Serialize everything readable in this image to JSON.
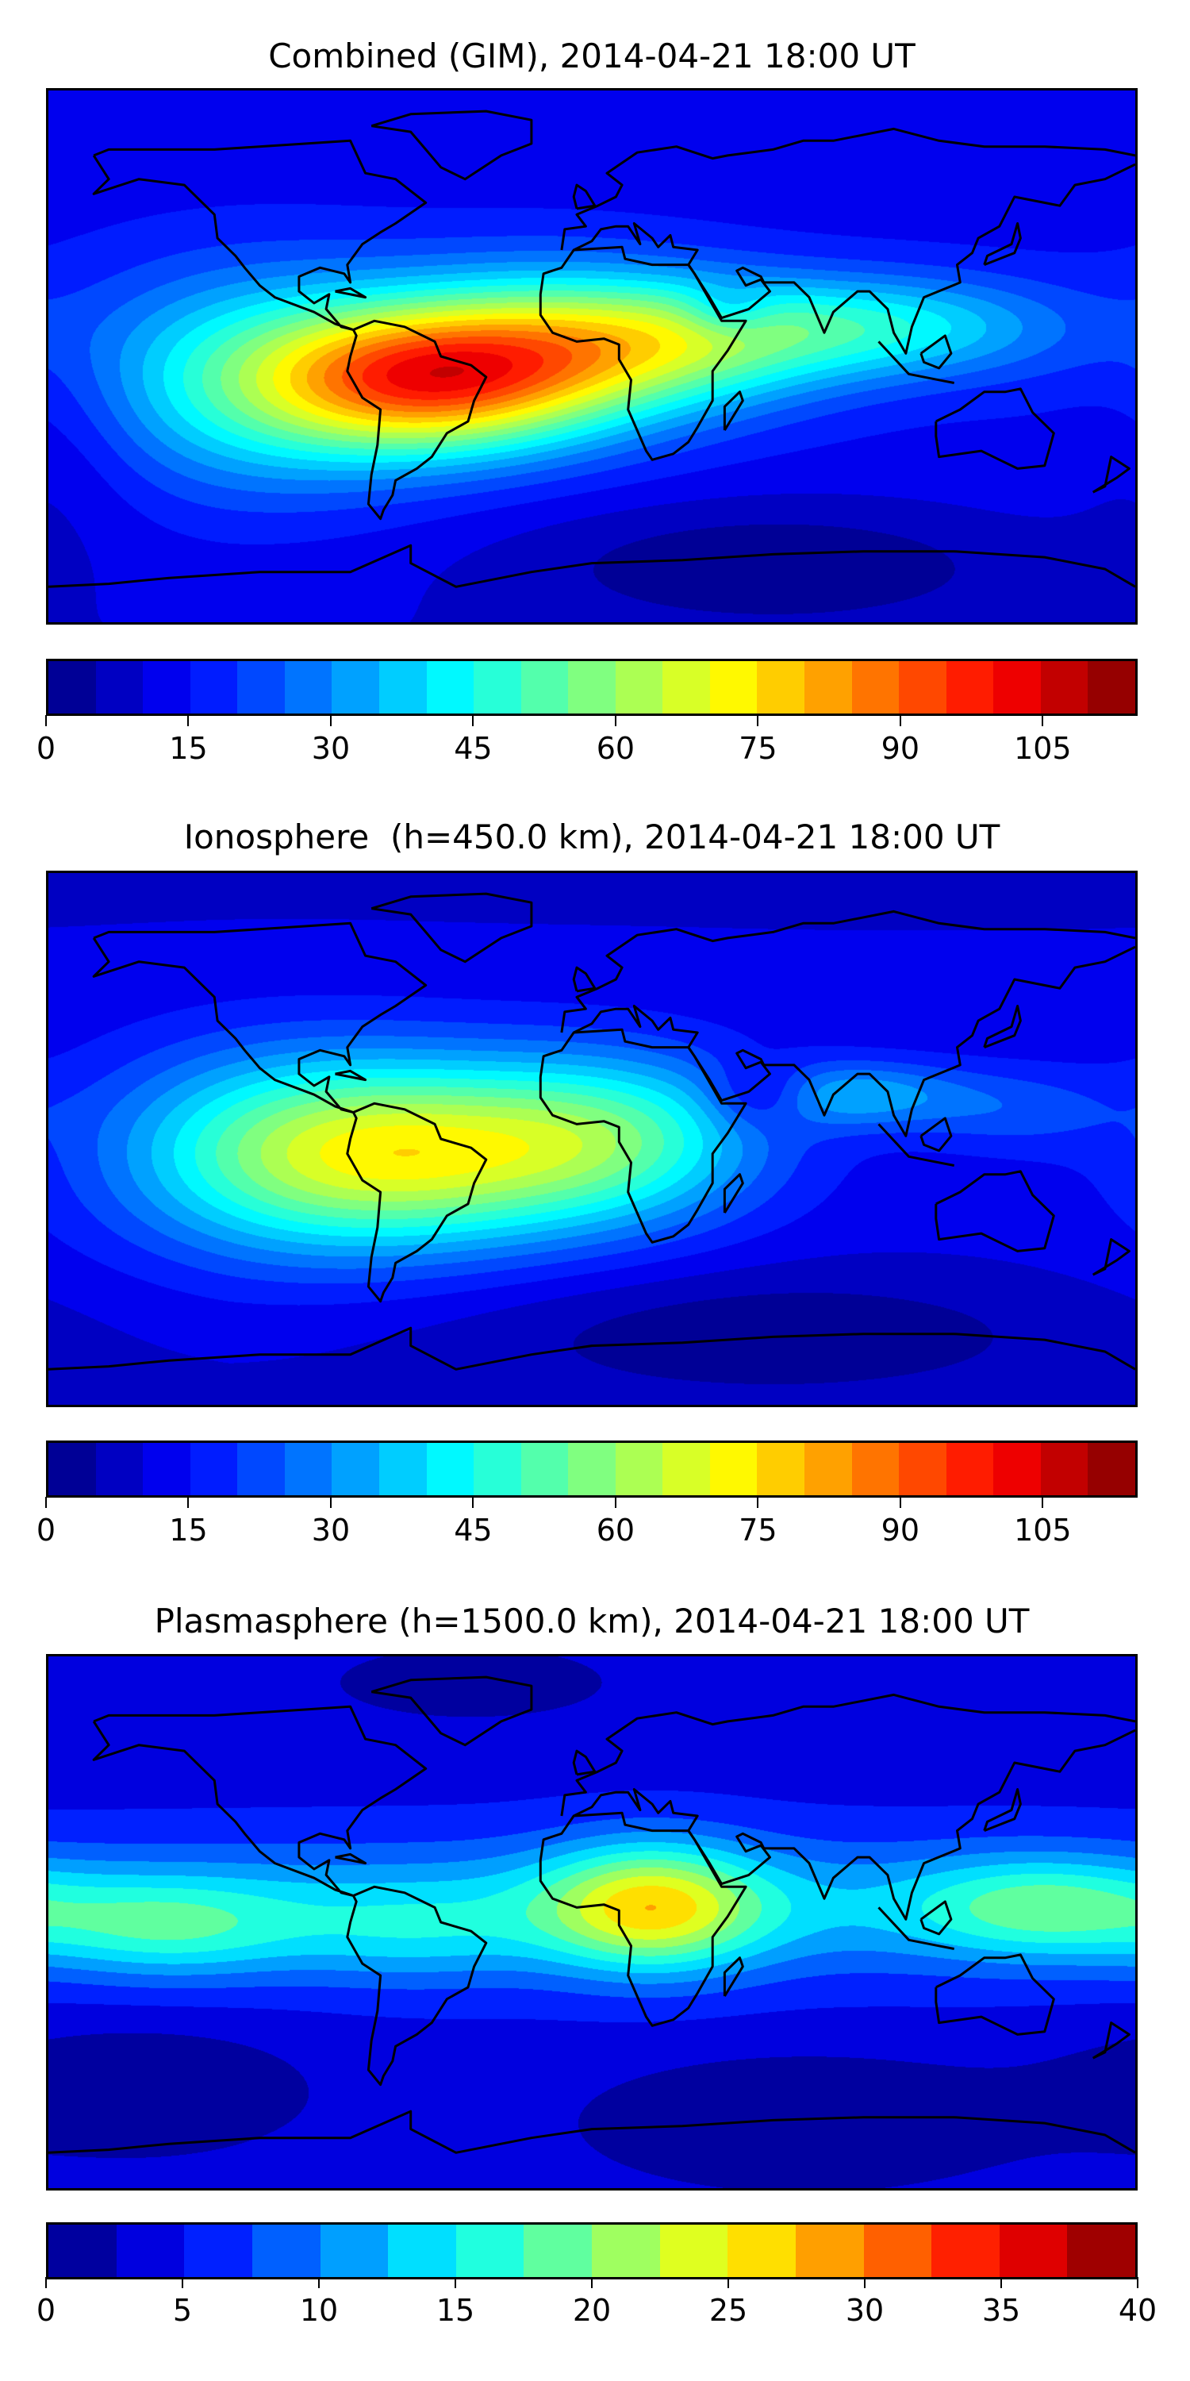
{
  "chart_data": [
    {
      "type": "heatmap",
      "title": "Combined (GIM), 2014-04-21 18:00 UT",
      "extent": {
        "lon": [
          -180,
          180
        ],
        "lat": [
          -90,
          90
        ]
      },
      "levels": {
        "min": 0,
        "max": 115,
        "step": 5
      },
      "ticks": [
        "0",
        "15",
        "30",
        "45",
        "60",
        "75",
        "90",
        "105"
      ],
      "tick_values": [
        0,
        15,
        30,
        45,
        60,
        75,
        90,
        105
      ],
      "base": 14,
      "blobs": [
        {
          "lon": -55,
          "lat": -8,
          "amp": 58,
          "sx": 38,
          "sy": 17
        },
        {
          "lon": -15,
          "lat": 2,
          "amp": 32,
          "sx": 40,
          "sy": 20
        },
        {
          "lon": -110,
          "lat": -8,
          "amp": 30,
          "sx": 42,
          "sy": 26
        },
        {
          "lon": 30,
          "lat": 5,
          "amp": 32,
          "sx": 40,
          "sy": 15
        },
        {
          "lon": 100,
          "lat": 10,
          "amp": 26,
          "sx": 40,
          "sy": 12
        },
        {
          "lon": 45,
          "lat": 15,
          "amp": -12,
          "sx": 10,
          "sy": 6
        },
        {
          "lon": 60,
          "lat": -70,
          "amp": -11,
          "sx": 60,
          "sy": 15
        },
        {
          "lon": -175,
          "lat": -30,
          "amp": -6,
          "sx": 20,
          "sy": 25
        }
      ]
    },
    {
      "type": "heatmap",
      "title": "Ionosphere  (h=450.0 km), 2014-04-21 18:00 UT",
      "extent": {
        "lon": [
          -180,
          180
        ],
        "lat": [
          -90,
          90
        ]
      },
      "levels": {
        "min": 0,
        "max": 115,
        "step": 5
      },
      "ticks": [
        "0",
        "15",
        "30",
        "45",
        "60",
        "75",
        "90",
        "105"
      ],
      "tick_values": [
        0,
        15,
        30,
        45,
        60,
        75,
        90,
        105
      ],
      "base": 12,
      "blobs": [
        {
          "lon": -55,
          "lat": -5,
          "amp": 48,
          "sx": 45,
          "sy": 22
        },
        {
          "lon": -110,
          "lat": -5,
          "amp": 25,
          "sx": 40,
          "sy": 25
        },
        {
          "lon": 10,
          "lat": 0,
          "amp": 30,
          "sx": 35,
          "sy": 20
        },
        {
          "lon": 55,
          "lat": 15,
          "amp": -15,
          "sx": 12,
          "sy": 8
        },
        {
          "lon": 88,
          "lat": 15,
          "amp": 20,
          "sx": 25,
          "sy": 8
        },
        {
          "lon": 140,
          "lat": 10,
          "amp": 10,
          "sx": 25,
          "sy": 10
        },
        {
          "lon": 60,
          "lat": -65,
          "amp": -9,
          "sx": 70,
          "sy": 15
        }
      ]
    },
    {
      "type": "heatmap",
      "title": "Plasmasphere (h=1500.0 km), 2014-04-21 18:00 UT",
      "extent": {
        "lon": [
          -180,
          180
        ],
        "lat": [
          -90,
          90
        ]
      },
      "levels": {
        "min": 0,
        "max": 40,
        "step": 2.5
      },
      "ticks": [
        "0",
        "5",
        "10",
        "15",
        "20",
        "25",
        "30",
        "35",
        "40"
      ],
      "tick_values": [
        0,
        5,
        10,
        15,
        20,
        25,
        30,
        35,
        40
      ],
      "base": 4.5,
      "blobs": [
        {
          "lon": 0,
          "lat": 5,
          "amp": 8,
          "sx": 200,
          "sy": 16
        },
        {
          "lon": 20,
          "lat": 5,
          "amp": 15,
          "sx": 25,
          "sy": 15
        },
        {
          "lon": -140,
          "lat": -2,
          "amp": 8,
          "sx": 30,
          "sy": 12
        },
        {
          "lon": 150,
          "lat": 5,
          "amp": 9,
          "sx": 30,
          "sy": 12
        },
        {
          "lon": -60,
          "lat": -5,
          "amp": 4,
          "sx": 30,
          "sy": 12
        },
        {
          "lon": -150,
          "lat": -55,
          "amp": -4,
          "sx": 40,
          "sy": 15
        },
        {
          "lon": 70,
          "lat": -65,
          "amp": -4,
          "sx": 50,
          "sy": 15
        },
        {
          "lon": -40,
          "lat": 80,
          "amp": -3,
          "sx": 30,
          "sy": 8
        }
      ]
    }
  ]
}
